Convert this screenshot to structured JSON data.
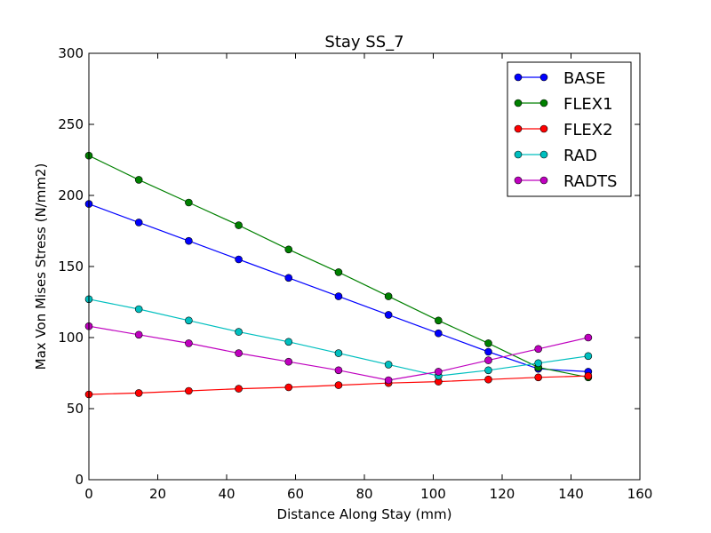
{
  "chart_data": {
    "type": "line",
    "title": "Stay SS_7",
    "xlabel": "Distance Along Stay (mm)",
    "ylabel": "Max Von Mises Stress (N/mm2)",
    "xlim": [
      0,
      160
    ],
    "ylim": [
      0,
      300
    ],
    "xticks": [
      0,
      20,
      40,
      60,
      80,
      100,
      120,
      140,
      160
    ],
    "yticks": [
      0,
      50,
      100,
      150,
      200,
      250,
      300
    ],
    "grid": false,
    "legend_position": "top-right",
    "x": [
      0,
      14.5,
      29,
      43.5,
      58,
      72.5,
      87,
      101.5,
      116,
      130.5,
      145
    ],
    "series": [
      {
        "name": "BASE",
        "color": "#0000ff",
        "values": [
          194,
          181,
          168,
          155,
          142,
          129,
          116,
          103,
          90,
          78,
          76
        ]
      },
      {
        "name": "FLEX1",
        "color": "#008000",
        "values": [
          228,
          211,
          195,
          179,
          162,
          146,
          129,
          112,
          96,
          79,
          72
        ]
      },
      {
        "name": "FLEX2",
        "color": "#ff0000",
        "values": [
          60,
          61,
          62.5,
          64,
          65,
          66.5,
          68,
          69,
          70.5,
          72,
          73
        ]
      },
      {
        "name": "RAD",
        "color": "#00bfbf",
        "values": [
          127,
          120,
          112,
          104,
          97,
          89,
          81,
          73,
          77,
          82,
          87
        ]
      },
      {
        "name": "RADTS",
        "color": "#bf00bf",
        "values": [
          108,
          102,
          96,
          89,
          83,
          77,
          70,
          76,
          84,
          92,
          100
        ]
      }
    ]
  }
}
